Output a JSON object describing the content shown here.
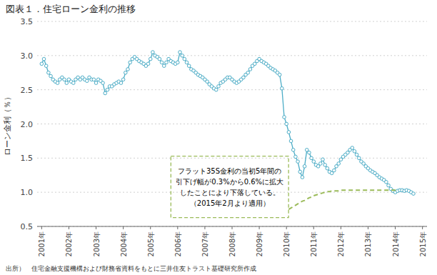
{
  "chart_data": {
    "type": "line",
    "title": "図表１．住宅ローン金利の推移",
    "ylabel": "ローン金利（％）",
    "source": "出所）　住宅金融支援機構および財務省資料をもとに三井住友トラスト基礎研究所作成",
    "annotation": "フラット35S金利の当初5年間の\n引下げ幅が0.3%から0.6%に拡大\nしたことにより下落している。\n（2015年2月より適用）",
    "grid": true,
    "xlim": [
      -2,
      170
    ],
    "xticks": [
      {
        "value": 0,
        "label": "2001年"
      },
      {
        "value": 12,
        "label": "2002年"
      },
      {
        "value": 24,
        "label": "2003年"
      },
      {
        "value": 36,
        "label": "2004年"
      },
      {
        "value": 48,
        "label": "2005年"
      },
      {
        "value": 60,
        "label": "2006年"
      },
      {
        "value": 72,
        "label": "2007年"
      },
      {
        "value": 84,
        "label": "2008年"
      },
      {
        "value": 96,
        "label": "2009年"
      },
      {
        "value": 108,
        "label": "2010年"
      },
      {
        "value": 120,
        "label": "2011年"
      },
      {
        "value": 132,
        "label": "2012年"
      },
      {
        "value": 144,
        "label": "2013年"
      },
      {
        "value": 156,
        "label": "2014年"
      },
      {
        "value": 168,
        "label": "2015年"
      }
    ],
    "ylim": [
      0.5,
      3.5
    ],
    "yticks": [
      0.5,
      {
        "value": 1,
        "label": "1.0"
      },
      1.5,
      {
        "value": 2,
        "label": "2.0"
      },
      2.5,
      {
        "value": 3,
        "label": "3.0"
      },
      3.5
    ],
    "series": [
      {
        "color": "#4BACC6",
        "marker": "circle",
        "line_style": "solid",
        "x": [
          0,
          1,
          2,
          3,
          4,
          5,
          6,
          7,
          8,
          9,
          10,
          11,
          12,
          13,
          14,
          15,
          16,
          17,
          18,
          19,
          20,
          21,
          22,
          23,
          24,
          25,
          26,
          27,
          28,
          29,
          30,
          31,
          32,
          33,
          34,
          35,
          36,
          37,
          38,
          39,
          40,
          41,
          42,
          43,
          44,
          45,
          46,
          47,
          48,
          49,
          50,
          51,
          52,
          53,
          54,
          55,
          56,
          57,
          58,
          59,
          60,
          61,
          62,
          63,
          64,
          65,
          66,
          67,
          68,
          69,
          70,
          71,
          72,
          73,
          74,
          75,
          76,
          77,
          78,
          79,
          80,
          81,
          82,
          83,
          84,
          85,
          86,
          87,
          88,
          89,
          90,
          91,
          92,
          93,
          94,
          95,
          96,
          97,
          98,
          99,
          100,
          101,
          102,
          103,
          104,
          105,
          106,
          107,
          108,
          109,
          110,
          111,
          112,
          113,
          114,
          115,
          116,
          117,
          118,
          119,
          120,
          121,
          122,
          123,
          124,
          125,
          126,
          127,
          128,
          129,
          130,
          131,
          132,
          133,
          134,
          135,
          136,
          137,
          138,
          139,
          140,
          141,
          142,
          143,
          144,
          145,
          146,
          147,
          148,
          149,
          150,
          151,
          152,
          153,
          154,
          155,
          156,
          157,
          158,
          159,
          160,
          161,
          162,
          163,
          164
        ],
        "values": [
          2.88,
          2.95,
          2.85,
          2.75,
          2.7,
          2.65,
          2.62,
          2.6,
          2.65,
          2.68,
          2.65,
          2.6,
          2.65,
          2.62,
          2.6,
          2.65,
          2.68,
          2.65,
          2.68,
          2.65,
          2.63,
          2.68,
          2.65,
          2.65,
          2.6,
          2.65,
          2.63,
          2.6,
          2.45,
          2.5,
          2.55,
          2.55,
          2.58,
          2.6,
          2.62,
          2.6,
          2.65,
          2.75,
          2.8,
          2.9,
          2.95,
          2.98,
          2.95,
          2.92,
          2.9,
          2.88,
          2.85,
          2.88,
          2.95,
          3.05,
          3.0,
          2.98,
          2.95,
          2.9,
          2.85,
          2.9,
          2.95,
          2.92,
          2.9,
          2.88,
          2.9,
          3.05,
          3.0,
          2.95,
          2.9,
          2.85,
          2.8,
          2.78,
          2.75,
          2.72,
          2.7,
          2.68,
          2.65,
          2.62,
          2.58,
          2.55,
          2.52,
          2.5,
          2.55,
          2.6,
          2.62,
          2.65,
          2.68,
          2.68,
          2.65,
          2.62,
          2.6,
          2.62,
          2.65,
          2.68,
          2.72,
          2.75,
          2.8,
          2.85,
          2.88,
          2.92,
          2.95,
          2.92,
          2.9,
          2.88,
          2.85,
          2.82,
          2.8,
          2.78,
          2.75,
          2.72,
          2.52,
          2.1,
          2.0,
          1.88,
          1.75,
          1.62,
          1.52,
          1.45,
          1.3,
          1.22,
          1.38,
          1.62,
          1.58,
          1.5,
          1.45,
          1.4,
          1.38,
          1.42,
          1.48,
          1.4,
          1.35,
          1.3,
          1.28,
          1.32,
          1.38,
          1.42,
          1.48,
          1.52,
          1.55,
          1.58,
          1.62,
          1.65,
          1.6,
          1.55,
          1.5,
          1.45,
          1.42,
          1.38,
          1.35,
          1.32,
          1.3,
          1.28,
          1.25,
          1.22,
          1.2,
          1.18,
          1.15,
          1.1,
          1.05,
          1.02,
          1.0,
          1.02,
          1.03,
          1.03,
          1.02,
          1.03,
          1.02,
          1.0,
          0.98
        ]
      },
      {
        "color": "#9BBB59",
        "line_style": "dashed",
        "x": [
          109,
          110,
          111,
          112,
          113,
          114,
          115,
          116,
          117,
          118,
          119,
          120,
          121,
          122,
          123,
          124,
          125,
          126,
          127,
          128,
          129,
          130,
          131,
          132,
          133,
          134,
          135,
          136,
          137,
          138,
          139,
          140,
          141,
          142,
          143,
          144,
          145,
          146,
          147,
          148,
          149,
          150,
          151,
          152,
          153,
          154,
          155,
          156,
          157
        ],
        "values": [
          0.75,
          0.77,
          0.79,
          0.81,
          0.83,
          0.85,
          0.87,
          0.88,
          0.9,
          0.92,
          0.93,
          0.95,
          0.96,
          0.97,
          0.98,
          0.99,
          1.0,
          1.01,
          1.01,
          1.02,
          1.02,
          1.02,
          1.02,
          1.03,
          1.03,
          1.03,
          1.03,
          1.03,
          1.03,
          1.03,
          1.03,
          1.03,
          1.03,
          1.03,
          1.03,
          1.03,
          1.03,
          1.03,
          1.03,
          1.03,
          1.03,
          1.03,
          1.03,
          1.03,
          1.03,
          1.03,
          1.03,
          1.03,
          1.03
        ]
      }
    ]
  }
}
